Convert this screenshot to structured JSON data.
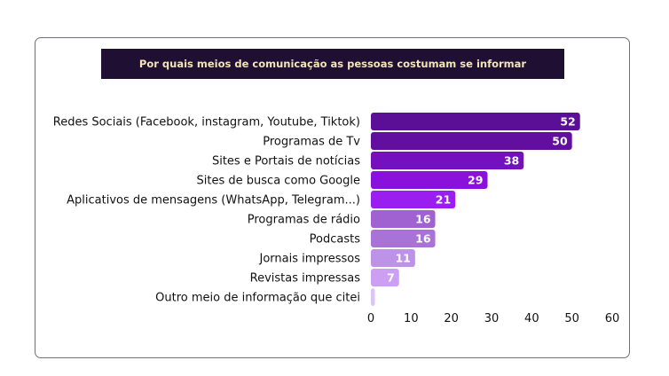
{
  "chart_data": {
    "type": "bar",
    "orientation": "horizontal",
    "title": "Por quais meios de comunicação as pessoas costumam se informar",
    "categories": [
      "Redes Sociais (Facebook, instagram, Youtube, Tiktok)",
      "Programas de Tv",
      "Sites e Portais de notícias",
      "Sites de busca como Google",
      "Aplicativos de mensagens (WhatsApp, Telegram...)",
      "Programas de rádio",
      "Podcasts",
      "Jornais impressos",
      "Revistas impressas",
      "Outro meio de informação que citei"
    ],
    "values": [
      52,
      50,
      38,
      29,
      21,
      16,
      16,
      11,
      7,
      1
    ],
    "value_labels": [
      "52",
      "50",
      "38",
      "29",
      "21",
      "16",
      "16",
      "11",
      "7",
      ""
    ],
    "bar_colors": [
      "#5a0f96",
      "#620e9f",
      "#7410bd",
      "#8a10dc",
      "#9b1ef0",
      "#a062d0",
      "#a872d6",
      "#bc93e6",
      "#cd9ff2",
      "#ddc4f6"
    ],
    "xticks": [
      "0",
      "10",
      "20",
      "30",
      "40",
      "50",
      "60"
    ],
    "xlim": [
      0,
      60
    ],
    "xlabel": "",
    "ylabel": "",
    "grid": false,
    "legend": "none"
  }
}
